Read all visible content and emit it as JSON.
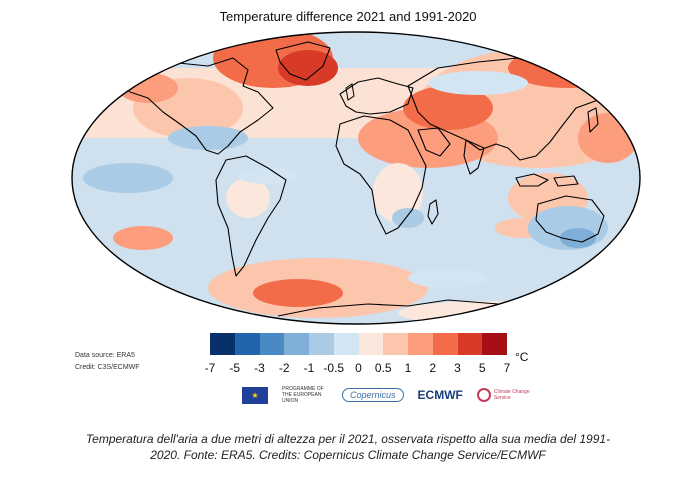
{
  "map": {
    "title": "Temperature difference 2021 and 1991-2020",
    "colorbar": {
      "ticks": [
        "-7",
        "-5",
        "-3",
        "-2",
        "-1",
        "-0.5",
        "0",
        "0.5",
        "1",
        "2",
        "3",
        "5",
        "7"
      ],
      "unit": "°C",
      "colors": [
        "#08306b",
        "#2166ac",
        "#4a8ac4",
        "#7fafd7",
        "#a9cbe6",
        "#d3e5f2",
        "#fbe7dc",
        "#fcc6ad",
        "#fc9e7e",
        "#f26c4a",
        "#d73a27",
        "#a50f15"
      ]
    },
    "ocean_color": "#cfe0ef",
    "outline_color": "#000000"
  },
  "credits": {
    "data_source": "Data source: ERA5",
    "credit": "Credit: C3S/ECMWF"
  },
  "logos": {
    "eu_text": "PROGRAMME OF THE EUROPEAN UNION",
    "copernicus": "Copernicus",
    "ecmwf": "ECMWF",
    "c3s": "Climate Change Service"
  },
  "caption": {
    "line1": "Temperatura dell'aria a due metri di altezza per il 2021, osservata rispetto alla sua media del 1991-",
    "line2": "2020. Fonte: ERA5. Credits: Copernicus Climate Change Service/ECMWF"
  }
}
